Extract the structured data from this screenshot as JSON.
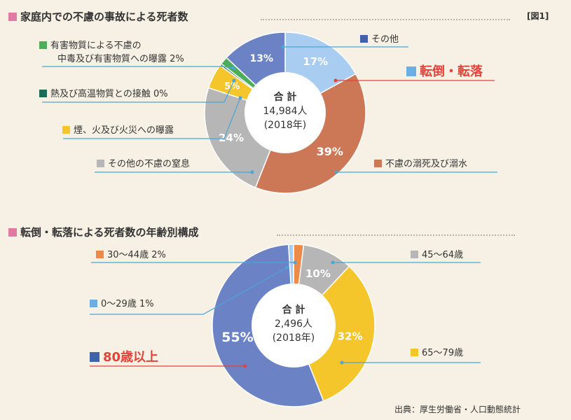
{
  "figure_label": "[図1]",
  "source": "出典：厚生労働省・人口動態統計",
  "colors": {
    "underline_red": "#e0443a",
    "leader": "#4aa6d6"
  },
  "chart_data": [
    {
      "type": "pie",
      "title": "家庭内での不慮の事故による死者数",
      "title_color": "#e17aa3",
      "center": {
        "label": "合 計",
        "total": "14,984人",
        "year": "(2018年)"
      },
      "slices": [
        {
          "name": "転倒・転落",
          "value": 17,
          "pct_label": "17%",
          "color": "#a8cdf0",
          "legend": "転倒・転落",
          "highlight": true
        },
        {
          "name": "不慮の溺死及び溺水",
          "value": 39,
          "pct_label": "39%",
          "color": "#cc7857",
          "legend": "不慮の溺死及び溺水"
        },
        {
          "name": "その他の不慮の窒息",
          "value": 24,
          "pct_label": "24%",
          "color": "#b6b6b6",
          "legend": "その他の不慮の窒息"
        },
        {
          "name": "煙、火及び火災への曝露",
          "value": 5,
          "pct_label": "5%",
          "color": "#f5c52c",
          "legend": "煙、火及び火災への曝露"
        },
        {
          "name": "熱及び高温物質との接触",
          "value": 0.4,
          "pct_label": "",
          "color": "#1e6b55",
          "legend": "熱及び高温物質との接触 0%"
        },
        {
          "name": "有害物質による不慮の中毒及び有害物質への曝露",
          "value": 1.6,
          "pct_label": "",
          "color": "#4cae58",
          "legend_line1": "有害物質による不慮の",
          "legend_line2": "中毒及び有害物質への曝露 2%"
        },
        {
          "name": "その他",
          "value": 13,
          "pct_label": "13%",
          "color": "#6b83c4",
          "legend": "その他"
        }
      ]
    },
    {
      "type": "pie",
      "title": "転倒・転落による死者数の年齢別構成",
      "title_color": "#e17aa3",
      "center": {
        "label": "合 計",
        "total": "2,496人",
        "year": "(2018年)"
      },
      "slices": [
        {
          "name": "30〜44歳",
          "value": 2,
          "pct_label": "",
          "color": "#ec8a4a",
          "legend": "30〜44歳 2%"
        },
        {
          "name": "45〜64歳",
          "value": 10,
          "pct_label": "10%",
          "color": "#b6b6b6",
          "legend": "45〜64歳"
        },
        {
          "name": "65〜79歳",
          "value": 32,
          "pct_label": "32%",
          "color": "#f5c52c",
          "legend": "65〜79歳"
        },
        {
          "name": "80歳以上",
          "value": 55,
          "pct_label": "55%",
          "color": "#6b83c4",
          "legend": "80歳以上",
          "highlight": true
        },
        {
          "name": "0〜29歳",
          "value": 1,
          "pct_label": "",
          "color": "#a8cdf0",
          "legend": "0〜29歳 1%"
        }
      ]
    }
  ]
}
